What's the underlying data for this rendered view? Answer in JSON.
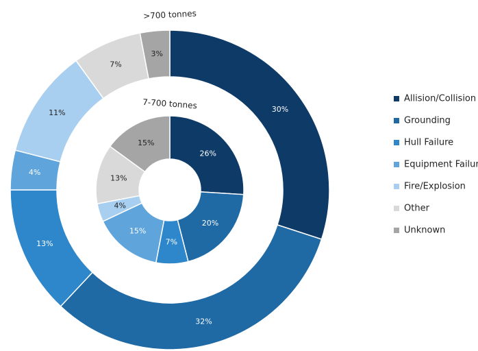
{
  "chart_data": {
    "type": "donut",
    "categories": [
      "Allision/Collision",
      "Grounding",
      "Hull Failure",
      "Equipment Failure",
      "Fire/Explosion",
      "Other",
      "Unknown"
    ],
    "colors": [
      "#0d3a66",
      "#1f69a4",
      "#2e87cb",
      "#5fa5dc",
      "#a9cff0",
      "#d9d9d9",
      "#a5a5a5"
    ],
    "series": [
      {
        "name": ">700 tonnes",
        "values": [
          30,
          32,
          13,
          4,
          11,
          7,
          3
        ],
        "value_labels": [
          "30%",
          "32%",
          "13%",
          "4%",
          "11%",
          "7%",
          "3%"
        ]
      },
      {
        "name": "7-700 tonnes",
        "values": [
          26,
          20,
          7,
          15,
          4,
          13,
          15
        ],
        "value_labels": [
          "26%",
          "20%",
          "7%",
          "15%",
          "4%",
          "13%",
          "15%"
        ]
      }
    ],
    "legend": "right"
  }
}
